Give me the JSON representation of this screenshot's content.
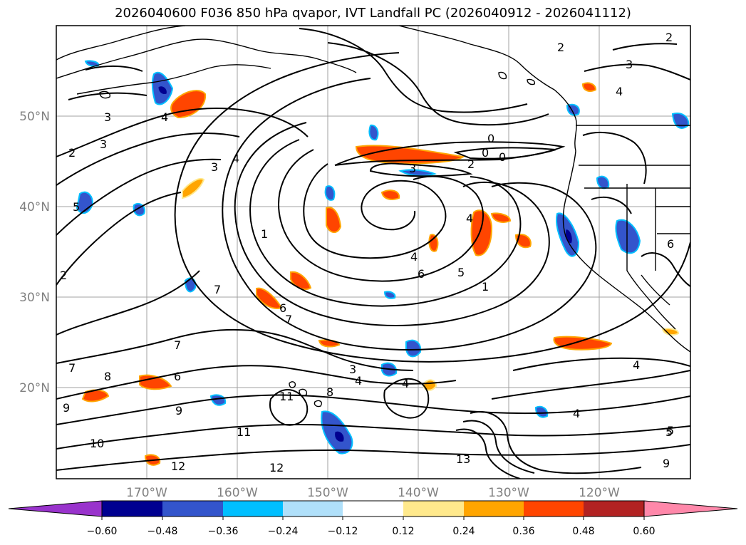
{
  "title": "2026040600 F036 850 hPa qvapor, IVT Landfall PC (2026040912 - 2026041112)",
  "map": {
    "lat_labels": [
      "50°N",
      "40°N",
      "30°N",
      "20°N"
    ],
    "lon_labels": [
      "170°W",
      "160°W",
      "150°W",
      "140°W",
      "130°W",
      "120°W"
    ],
    "contour_labels": [
      "2",
      "3",
      "3",
      "4",
      "4",
      "3",
      "1",
      "2",
      "0",
      "0",
      "0",
      "2",
      "3",
      "4",
      "4",
      "4",
      "5",
      "6",
      "6",
      "7",
      "7",
      "1",
      "5",
      "5",
      "2",
      "2",
      "3",
      "4",
      "6",
      "6",
      "7",
      "7",
      "8",
      "8",
      "9",
      "9",
      "10",
      "11",
      "11",
      "12",
      "12",
      "13",
      "4",
      "4",
      "5",
      "3",
      "9",
      "4"
    ]
  },
  "colorbar": {
    "ticks": [
      "−0.60",
      "−0.48",
      "−0.36",
      "−0.24",
      "−0.12",
      "0.12",
      "0.24",
      "0.36",
      "0.48",
      "0.60"
    ],
    "colors": [
      "#9933cc",
      "#000090",
      "#3355cc",
      "#00bfff",
      "#b0e0fa",
      "#ffffff",
      "#ffe98c",
      "#ffa500",
      "#ff4500",
      "#b22222",
      "#ff88aa"
    ]
  },
  "colors": {
    "grid": "#a0a0a0",
    "contour": "#000000",
    "coast": "#000000"
  }
}
